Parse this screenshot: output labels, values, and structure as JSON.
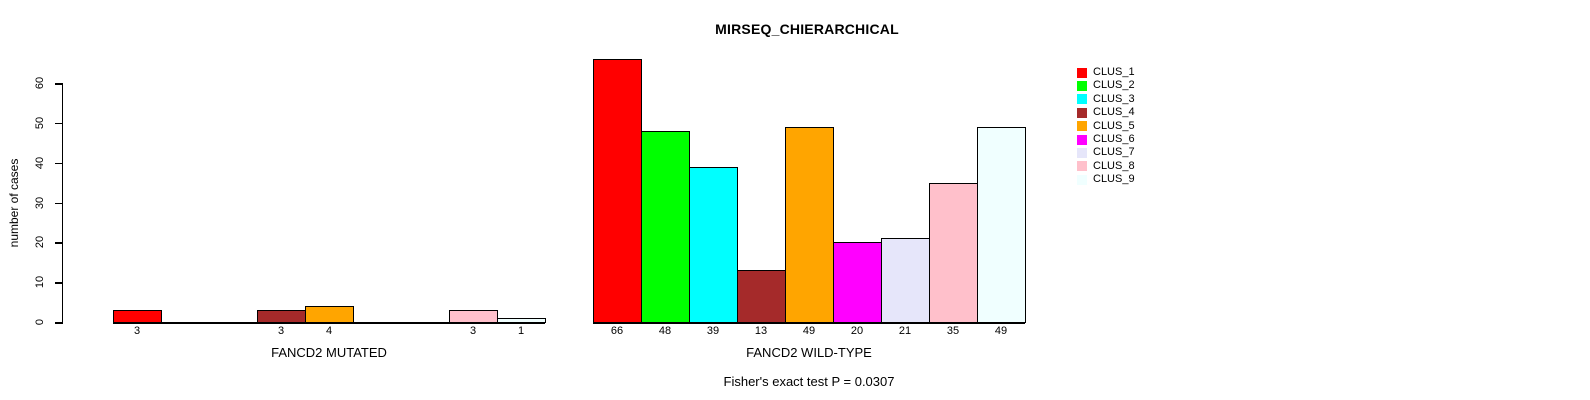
{
  "chart_data": {
    "type": "bar",
    "title": "MIRSEQ_CHIERARCHICAL",
    "ylabel": "number of cases",
    "ylim": [
      0,
      60
    ],
    "yticks": [
      0,
      10,
      20,
      30,
      40,
      50,
      60
    ],
    "grid": false,
    "categories": [
      "CLUS_1",
      "CLUS_2",
      "CLUS_3",
      "CLUS_4",
      "CLUS_5",
      "CLUS_6",
      "CLUS_7",
      "CLUS_8",
      "CLUS_9"
    ],
    "cluster_colors": [
      "#FF0000",
      "#00FF00",
      "#00FFFF",
      "#A52A2A",
      "#FFA500",
      "#FF00FF",
      "#E6E6FA",
      "#FFC0CB",
      "#F0FFFF"
    ],
    "bar_border_color": "#000000",
    "groups": [
      {
        "label": "FANCD2 MUTATED",
        "values": [
          3,
          0,
          0,
          3,
          4,
          0,
          0,
          3,
          1
        ]
      },
      {
        "label": "FANCD2 WILD-TYPE",
        "values": [
          66,
          48,
          39,
          13,
          49,
          20,
          21,
          35,
          49
        ]
      }
    ],
    "legend": {
      "position": "top-right",
      "entries": [
        "CLUS_1",
        "CLUS_2",
        "CLUS_3",
        "CLUS_4",
        "CLUS_5",
        "CLUS_6",
        "CLUS_7",
        "CLUS_8",
        "CLUS_9"
      ]
    },
    "annotation": "Fisher's exact test P = 0.0307"
  }
}
